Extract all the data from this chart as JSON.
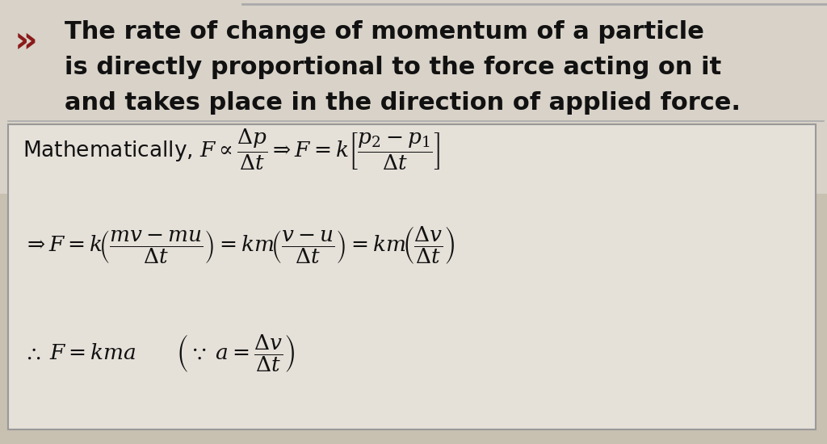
{
  "bg_color": "#c8c0b0",
  "page_color": "#ddd8ce",
  "box_color": "#e0dbd2",
  "box_edge_color": "#999999",
  "text_color": "#111111",
  "red_color": "#8b1a1a",
  "line1": "The rate of change of momentum of a particle",
  "line2": "is directly proportional to the force acting on it",
  "line3": "and takes place in the direction of applied force.",
  "bullet": "»",
  "fs_intro": 22,
  "fs_math": 19,
  "fs_bullet": 32
}
